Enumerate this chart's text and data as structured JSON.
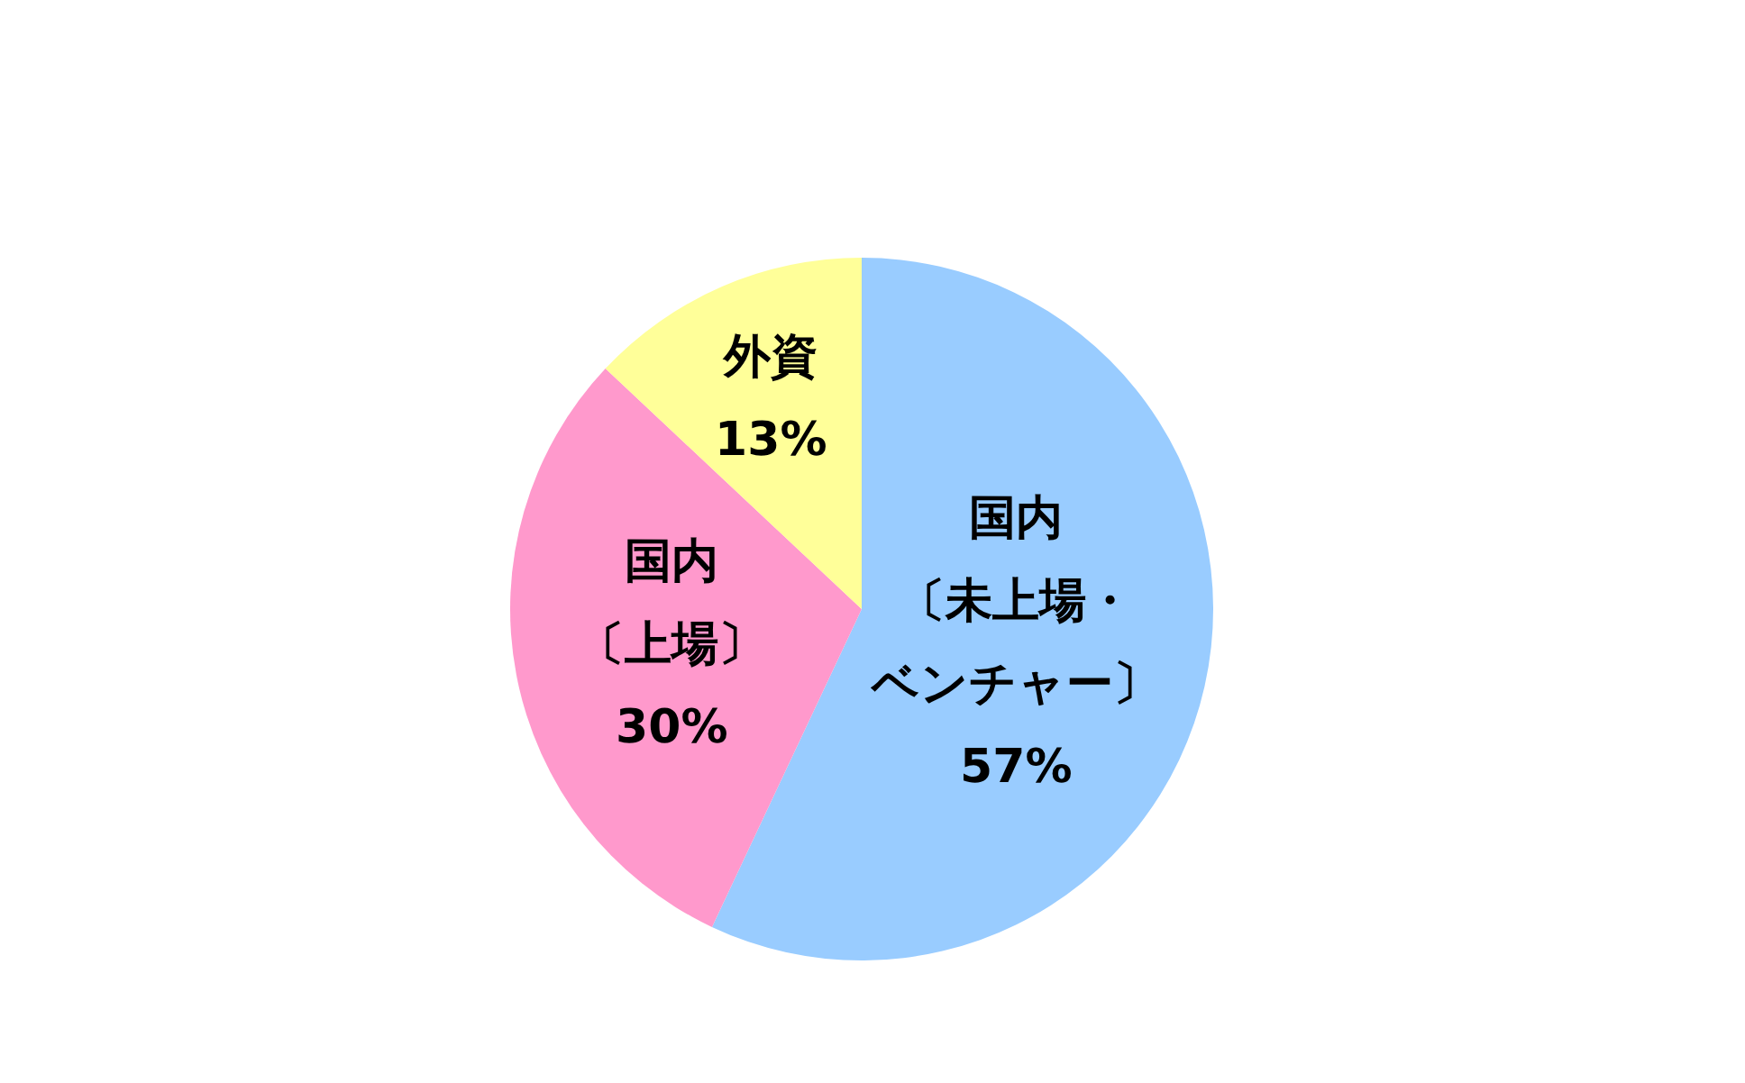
{
  "chart_data": {
    "type": "pie",
    "categories": [
      "国内〔未上場・ベンチャー〕",
      "国内〔上場〕",
      "外資"
    ],
    "values": [
      57,
      30,
      13
    ],
    "colors": [
      "#99ccff",
      "#ff99cc",
      "#ffff99"
    ],
    "value_labels": [
      "57%",
      "30%",
      "13%"
    ]
  }
}
